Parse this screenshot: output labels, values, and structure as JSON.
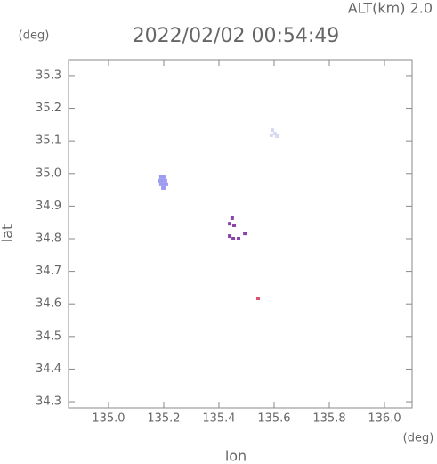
{
  "chart_data": {
    "type": "scatter",
    "title": "2022/02/02 00:54:49",
    "subtitle": "ALT(km) 2.0",
    "x_label": "lon",
    "y_label": "lat",
    "x_unit": "(deg)",
    "y_unit": "(deg)",
    "xlim": [
      134.855,
      136.1
    ],
    "ylim": [
      34.281,
      35.349
    ],
    "xticks": [
      {
        "value": 135,
        "label": "135.0"
      },
      {
        "value": 135.2,
        "label": "135.2"
      },
      {
        "value": 135.4,
        "label": "135.4"
      },
      {
        "value": 135.6,
        "label": "135.6"
      },
      {
        "value": 135.8,
        "label": "135.8"
      },
      {
        "value": 136,
        "label": "136.0"
      }
    ],
    "yticks": [
      34.3,
      34.4,
      34.5,
      34.6,
      34.7,
      34.8,
      34.9,
      {
        "value": 35,
        "label": "35.0"
      },
      35.1,
      35.2,
      35.3
    ],
    "series": [
      {
        "color": "#9c9cf0",
        "x": [
          135.19,
          135.2,
          135.187,
          135.197,
          135.206,
          135.19,
          135.2,
          135.21,
          135.197,
          135.203
        ],
        "y": [
          34.989,
          34.989,
          34.978,
          34.978,
          34.978,
          34.967,
          34.967,
          34.967,
          34.956,
          34.956
        ]
      },
      {
        "color": "#8844aa",
        "x": [
          135.448,
          135.439,
          135.455,
          135.439,
          135.452,
          135.494,
          135.471
        ],
        "y": [
          34.863,
          34.846,
          34.841,
          34.808,
          34.8,
          34.816,
          34.8
        ]
      },
      {
        "color": "#e05070",
        "x": [
          135.542
        ],
        "y": [
          34.617
        ]
      },
      {
        "color": "#d8d8f4",
        "x": [
          135.594,
          135.603,
          135.59,
          135.61
        ],
        "y": [
          35.133,
          35.122,
          35.117,
          35.114
        ]
      }
    ]
  }
}
